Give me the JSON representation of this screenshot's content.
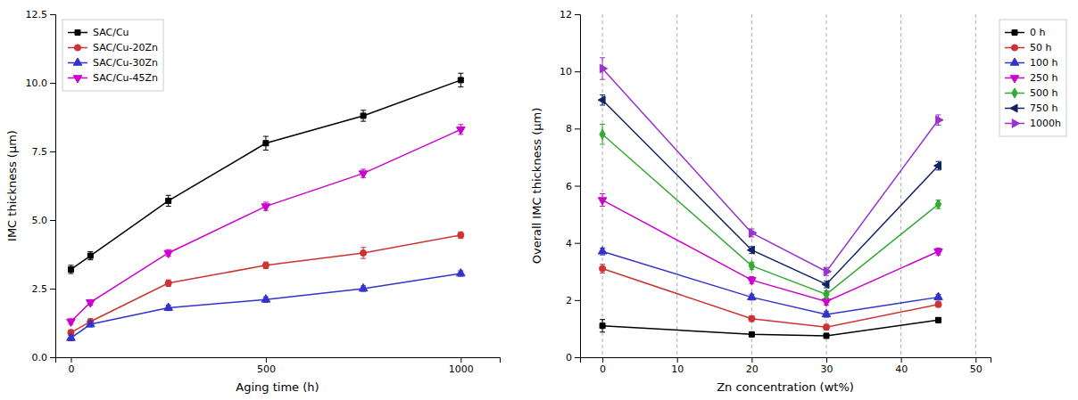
{
  "chart_data": [
    {
      "type": "line",
      "xlabel": "Aging time (h)",
      "ylabel": "IMC thickness (μm)",
      "xlim": [
        -40,
        1100
      ],
      "ylim": [
        0.0,
        12.5
      ],
      "xticks": [
        0,
        500,
        1000
      ],
      "yticks": [
        {
          "value": 0.0,
          "label": "0.0"
        },
        2.5,
        {
          "value": 5.0,
          "label": "5.0"
        },
        7.5,
        {
          "value": 10.0,
          "label": "10.0"
        },
        12.5
      ],
      "legend": "upper left",
      "x": [
        0,
        50,
        250,
        500,
        750,
        1000
      ],
      "series": [
        {
          "name": "SAC/Cu",
          "color": "#000000",
          "marker": "square",
          "values": [
            3.2,
            3.7,
            5.7,
            7.8,
            8.8,
            10.1
          ],
          "yerr": [
            0.15,
            0.15,
            0.2,
            0.25,
            0.2,
            0.25
          ]
        },
        {
          "name": "SAC/Cu-20Zn",
          "color": "#cc3333",
          "marker": "circle",
          "values": [
            0.9,
            1.3,
            2.7,
            3.35,
            3.8,
            4.45
          ],
          "yerr": [
            0.1,
            0.1,
            0.12,
            0.12,
            0.2,
            0.12
          ]
        },
        {
          "name": "SAC/Cu-30Zn",
          "color": "#3333cc",
          "marker": "triangle-up",
          "values": [
            0.7,
            1.2,
            1.8,
            2.1,
            2.5,
            3.05
          ],
          "yerr": [
            0.1,
            0.1,
            0.1,
            0.1,
            0.1,
            0.1
          ]
        },
        {
          "name": "SAC/Cu-45Zn",
          "color": "#cc00cc",
          "marker": "triangle-down",
          "values": [
            1.3,
            2.0,
            3.8,
            5.5,
            6.7,
            8.3
          ],
          "yerr": [
            0.1,
            0.1,
            0.12,
            0.15,
            0.15,
            0.18
          ]
        }
      ]
    },
    {
      "type": "line",
      "xlabel": "Zn concentration (wt%)",
      "ylabel": "Overall IMC thickness (μm)",
      "xlim": [
        -3,
        52
      ],
      "ylim": [
        0,
        12
      ],
      "xticks": [
        0,
        10,
        20,
        30,
        40,
        50
      ],
      "yticks": [
        0,
        2,
        4,
        6,
        8,
        10,
        12
      ],
      "grid": "x",
      "legend": "upper right",
      "x": [
        0,
        20,
        30,
        45
      ],
      "series": [
        {
          "name": "0 h",
          "color": "#000000",
          "marker": "square",
          "values": [
            1.1,
            0.8,
            0.75,
            1.3
          ],
          "yerr": [
            0.22,
            0.05,
            0.05,
            0.08
          ]
        },
        {
          "name": "50 h",
          "color": "#cc3333",
          "marker": "circle",
          "values": [
            3.1,
            1.35,
            1.05,
            1.85
          ],
          "yerr": [
            0.15,
            0.1,
            0.1,
            0.1
          ]
        },
        {
          "name": "100 h",
          "color": "#3333cc",
          "marker": "triangle-up",
          "values": [
            3.7,
            2.1,
            1.5,
            2.1
          ],
          "yerr": [
            0.12,
            0.1,
            0.1,
            0.1
          ]
        },
        {
          "name": "250 h",
          "color": "#cc00cc",
          "marker": "triangle-down",
          "values": [
            5.5,
            2.7,
            1.95,
            3.7
          ],
          "yerr": [
            0.22,
            0.12,
            0.12,
            0.12
          ]
        },
        {
          "name": "500 h",
          "color": "#33aa33",
          "marker": "diamond",
          "values": [
            7.8,
            3.2,
            2.2,
            5.35
          ],
          "yerr": [
            0.35,
            0.12,
            0.12,
            0.15
          ]
        },
        {
          "name": "750 h",
          "color": "#112266",
          "marker": "caret-left",
          "values": [
            9.0,
            3.75,
            2.55,
            6.7
          ],
          "yerr": [
            0.18,
            0.12,
            0.12,
            0.15
          ]
        },
        {
          "name": "1000h",
          "color": "#9933cc",
          "marker": "triangle-right",
          "values": [
            10.1,
            4.35,
            3.0,
            8.3
          ],
          "yerr": [
            0.38,
            0.14,
            0.14,
            0.18
          ]
        }
      ]
    }
  ]
}
